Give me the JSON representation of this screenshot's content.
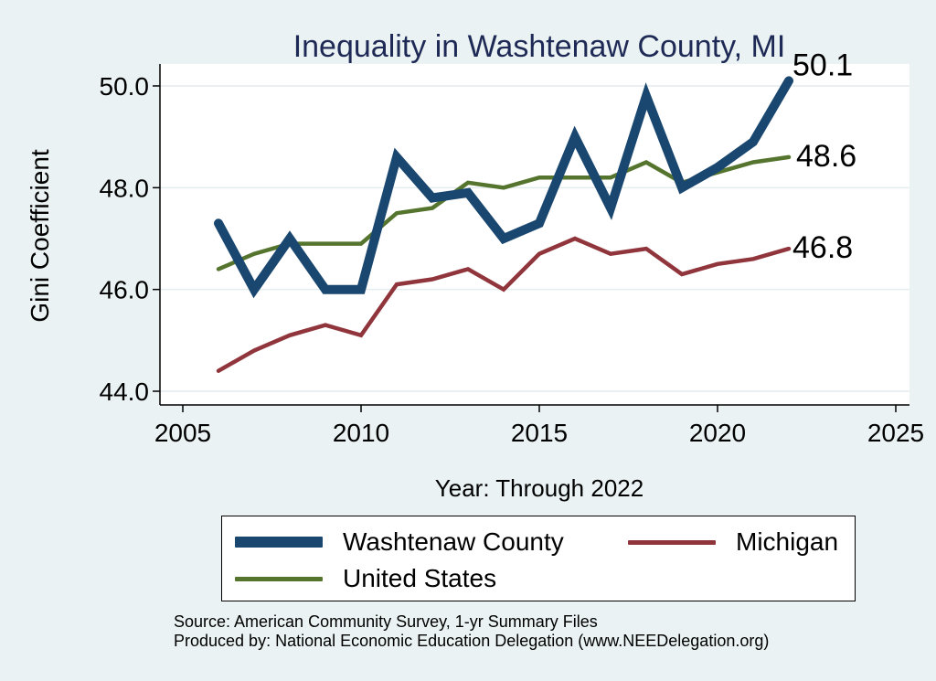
{
  "chart_data": {
    "type": "line",
    "title": "Inequality in Washtenaw County, MI",
    "xlabel": "Year: Through 2022",
    "ylabel": "Gini Coefficient",
    "xlim": [
      2005,
      2025
    ],
    "ylim": [
      44.0,
      50.0
    ],
    "xticks": [
      2005,
      2010,
      2015,
      2020,
      2025
    ],
    "yticks": [
      "44.0",
      "46.0",
      "48.0",
      "50.0"
    ],
    "grid": true,
    "legend_position": "bottom",
    "series": [
      {
        "name": "Washtenaw County",
        "color": "#1a476f",
        "x": [
          2006,
          2007,
          2008,
          2009,
          2010,
          2011,
          2012,
          2013,
          2014,
          2015,
          2016,
          2017,
          2018,
          2019,
          2020,
          2021,
          2022
        ],
        "values": [
          47.3,
          46.0,
          47.0,
          46.0,
          46.0,
          48.6,
          47.8,
          47.9,
          47.0,
          47.3,
          49.0,
          47.6,
          49.8,
          48.0,
          48.4,
          48.9,
          50.1
        ],
        "end_label": "50.1"
      },
      {
        "name": "Michigan",
        "color": "#90353b",
        "x": [
          2006,
          2007,
          2008,
          2009,
          2010,
          2011,
          2012,
          2013,
          2014,
          2015,
          2016,
          2017,
          2018,
          2019,
          2020,
          2021,
          2022
        ],
        "values": [
          44.4,
          44.8,
          45.1,
          45.3,
          45.1,
          46.1,
          46.2,
          46.4,
          46.0,
          46.7,
          47.0,
          46.7,
          46.8,
          46.3,
          46.5,
          46.6,
          46.8
        ],
        "end_label": "46.8"
      },
      {
        "name": "United States",
        "color": "#55752f",
        "x": [
          2006,
          2007,
          2008,
          2009,
          2010,
          2011,
          2012,
          2013,
          2014,
          2015,
          2016,
          2017,
          2018,
          2019,
          2020,
          2021,
          2022
        ],
        "values": [
          46.4,
          46.7,
          46.9,
          46.9,
          46.9,
          47.5,
          47.6,
          48.1,
          48.0,
          48.2,
          48.2,
          48.2,
          48.5,
          48.1,
          48.3,
          48.5,
          48.6
        ],
        "end_label": "48.6"
      }
    ]
  },
  "source_lines": [
    "Source: American Community Survey, 1-yr Summary Files",
    "Produced by: National Economic Education Delegation (www.NEEDelegation.org)"
  ]
}
